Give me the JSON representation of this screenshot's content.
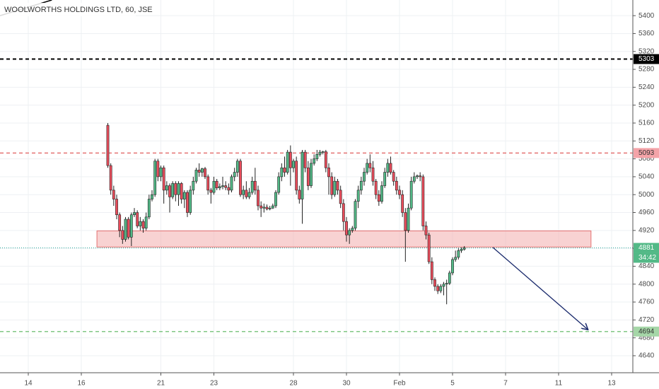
{
  "chart_data": {
    "type": "candlestick",
    "title": "WOOLWORTHS HOLDINGS LTD, 60, JSE",
    "x": [
      27,
      28,
      29,
      30,
      31,
      32,
      33,
      34,
      35,
      36,
      37,
      38,
      39,
      40,
      41,
      42,
      43,
      44,
      45,
      46,
      47,
      48,
      49,
      50,
      51,
      52,
      53,
      54,
      55,
      56,
      57,
      58,
      59,
      60,
      61,
      62,
      63,
      64,
      65,
      66,
      67,
      68,
      69,
      70,
      71,
      72,
      73,
      74,
      75,
      76,
      77,
      78,
      79,
      80,
      81,
      82,
      83,
      84,
      85,
      86,
      87,
      88,
      89,
      90,
      91,
      92,
      93,
      94,
      95,
      96,
      97,
      98,
      99,
      100,
      101,
      102,
      103,
      104,
      105,
      106,
      107,
      108,
      109,
      110,
      111,
      112,
      113,
      114,
      115,
      116,
      117,
      118,
      119,
      120,
      121,
      122,
      123,
      124,
      125,
      126,
      127,
      128,
      129,
      130,
      131,
      132,
      133,
      134,
      135,
      136,
      137,
      138,
      139,
      140,
      141,
      142,
      143,
      144,
      145,
      146,
      147,
      148
    ],
    "open": [
      5155,
      5065,
      5010,
      4990,
      4955,
      4920,
      4900,
      4945,
      4905,
      4955,
      4960,
      4930,
      4940,
      4925,
      4950,
      4990,
      5000,
      5075,
      5040,
      5060,
      5010,
      5020,
      4995,
      5025,
      5000,
      5025,
      4990,
      5005,
      4960,
      5010,
      5030,
      5055,
      5050,
      5058,
      5040,
      5010,
      5005,
      5030,
      5015,
      5018,
      5020,
      5016,
      5010,
      5040,
      5050,
      5075,
      5000,
      5010,
      4995,
      5005,
      5030,
      5010,
      4975,
      4970,
      4972,
      4968,
      4970,
      4975,
      5005,
      5040,
      5060,
      5050,
      5095,
      5060,
      5075,
      5010,
      4990,
      5095,
      5060,
      5020,
      5070,
      5080,
      5090,
      5095,
      5096,
      5060,
      5040,
      5000,
      5030,
      5010,
      4980,
      4940,
      4910,
      4920,
      4925,
      4985,
      5010,
      5030,
      5050,
      5070,
      5060,
      5030,
      5000,
      4985,
      5020,
      5050,
      5070,
      5050,
      5030,
      5010,
      5000,
      4960,
      4920,
      4970,
      5030,
      5040,
      5042,
      5040,
      4930,
      4910,
      4850,
      4810,
      4795,
      4785,
      4795,
      4800,
      4802,
      4825,
      4855,
      4860,
      4875,
      4878
    ],
    "high": [
      5160,
      5070,
      5020,
      5000,
      4960,
      4930,
      4950,
      4950,
      4960,
      4970,
      4965,
      4950,
      4945,
      4960,
      5000,
      5010,
      5080,
      5080,
      5065,
      5065,
      5030,
      5025,
      5030,
      5030,
      5030,
      5028,
      5010,
      5010,
      5020,
      5040,
      5060,
      5070,
      5060,
      5062,
      5045,
      5015,
      5040,
      5035,
      5025,
      5040,
      5030,
      5025,
      5045,
      5060,
      5080,
      5080,
      5020,
      5030,
      5015,
      5040,
      5060,
      5020,
      4985,
      4980,
      4978,
      4975,
      4980,
      5010,
      5050,
      5070,
      5085,
      5100,
      5110,
      5080,
      5085,
      5020,
      5100,
      5100,
      5075,
      5080,
      5090,
      5100,
      5100,
      5098,
      5100,
      5070,
      5050,
      5040,
      5035,
      5020,
      4990,
      4950,
      4925,
      4930,
      4990,
      5020,
      5040,
      5060,
      5080,
      5090,
      5075,
      5035,
      5010,
      5030,
      5060,
      5080,
      5085,
      5055,
      5040,
      5020,
      5010,
      4970,
      4980,
      5040,
      5050,
      5045,
      5050,
      5045,
      4940,
      4915,
      4860,
      4815,
      4800,
      4800,
      4805,
      4810,
      4830,
      4860,
      4875,
      4880,
      4882,
      4885
    ],
    "low": [
      5060,
      5000,
      4975,
      4945,
      4905,
      4890,
      4895,
      4900,
      4885,
      4950,
      4925,
      4920,
      4915,
      4920,
      4945,
      4985,
      4995,
      5030,
      5030,
      4980,
      5000,
      4960,
      4990,
      4985,
      4975,
      4980,
      4970,
      4950,
      4955,
      5000,
      5025,
      5040,
      5040,
      5035,
      5000,
      4980,
      5000,
      5010,
      5010,
      5012,
      5010,
      5000,
      5005,
      5030,
      5040,
      4995,
      4990,
      4990,
      4990,
      5000,
      5000,
      4965,
      4950,
      4960,
      4965,
      4965,
      4968,
      4970,
      5000,
      5030,
      5040,
      5045,
      5020,
      5050,
      5000,
      4980,
      4935,
      5050,
      5010,
      5015,
      5065,
      5075,
      5085,
      5090,
      5050,
      5000,
      4990,
      4995,
      5000,
      4970,
      4920,
      4895,
      4890,
      4915,
      4920,
      4970,
      5000,
      5020,
      5045,
      5050,
      5020,
      4990,
      4975,
      4980,
      5015,
      5040,
      5045,
      5020,
      5000,
      4990,
      4950,
      4850,
      4915,
      4965,
      5025,
      5035,
      5030,
      4920,
      4900,
      4845,
      4800,
      4785,
      4778,
      4780,
      4775,
      4755,
      4798,
      4820,
      4850,
      4855,
      4870,
      4875
    ],
    "close": [
      5065,
      5010,
      4990,
      4955,
      4920,
      4900,
      4945,
      4905,
      4955,
      4960,
      4930,
      4940,
      4925,
      4950,
      4990,
      5000,
      5075,
      5040,
      5060,
      5010,
      5020,
      4995,
      5025,
      5000,
      5025,
      4990,
      5005,
      4960,
      5010,
      5030,
      5055,
      5050,
      5058,
      5040,
      5010,
      5005,
      5030,
      5015,
      5018,
      5020,
      5016,
      5010,
      5040,
      5050,
      5075,
      5000,
      5010,
      4995,
      5005,
      5030,
      5010,
      4975,
      4970,
      4972,
      4968,
      4970,
      4975,
      5005,
      5040,
      5060,
      5050,
      5095,
      5060,
      5075,
      5010,
      4990,
      5095,
      5060,
      5020,
      5070,
      5080,
      5090,
      5095,
      5096,
      5060,
      5040,
      5000,
      5030,
      5010,
      4980,
      4940,
      4910,
      4920,
      4925,
      4985,
      5010,
      5030,
      5050,
      5070,
      5060,
      5030,
      5000,
      4985,
      5020,
      5050,
      5070,
      5050,
      5030,
      5010,
      5000,
      4960,
      4920,
      4970,
      5030,
      5040,
      5042,
      5040,
      4930,
      4910,
      4850,
      4810,
      4795,
      4785,
      4795,
      4800,
      4802,
      4825,
      4855,
      4860,
      4875,
      4878,
      4881
    ],
    "up_color": "#53b987",
    "down_color": "#eb4d5c",
    "wick_color": "#222222",
    "xlim": [
      -9.6,
      205.2
    ],
    "ylim": [
      4602,
      5435
    ],
    "xticks": [
      {
        "value": 0,
        "label": "14"
      },
      {
        "value": 18,
        "label": "16"
      },
      {
        "value": 45,
        "label": "21"
      },
      {
        "value": 63,
        "label": "23"
      },
      {
        "value": 90,
        "label": "28"
      },
      {
        "value": 108,
        "label": "30"
      },
      {
        "value": 126,
        "label": "Feb"
      },
      {
        "value": 144,
        "label": "5"
      },
      {
        "value": 162,
        "label": "7"
      },
      {
        "value": 180,
        "label": "11"
      },
      {
        "value": 198,
        "label": "13"
      }
    ],
    "yticks": [
      4640,
      4680,
      4720,
      4760,
      4800,
      4840,
      4880,
      4920,
      4960,
      5000,
      5040,
      5080,
      5120,
      5160,
      5200,
      5240,
      5280,
      5320,
      5360,
      5400
    ],
    "grid": true,
    "levels": [
      {
        "value": 5303,
        "color": "#000000",
        "label_bg": "#000000",
        "label_color": "#ffffff"
      },
      {
        "value": 5093,
        "color": "#e57373",
        "label_bg": "#f4a3a8",
        "label_color": "#333333"
      },
      {
        "value": 4694,
        "color": "#81c784",
        "label_bg": "#a5d6a7",
        "label_color": "#333333"
      }
    ],
    "zone": {
      "x": [
        23.3,
        191
      ],
      "y": [
        4883,
        4919
      ],
      "color": "#f4b4b4"
    },
    "arrow": {
      "x": [
        157.7,
        190
      ],
      "y": [
        4882,
        4698
      ],
      "color": "#1a2a6c"
    },
    "trendline": {
      "x": [
        -9.6,
        8
      ],
      "y": [
        5400,
        5435
      ],
      "color": "#000000"
    },
    "last_price": {
      "value": 4881,
      "countdown": "34:42",
      "color": "#26a69a",
      "label_bg": "#53b987"
    }
  }
}
